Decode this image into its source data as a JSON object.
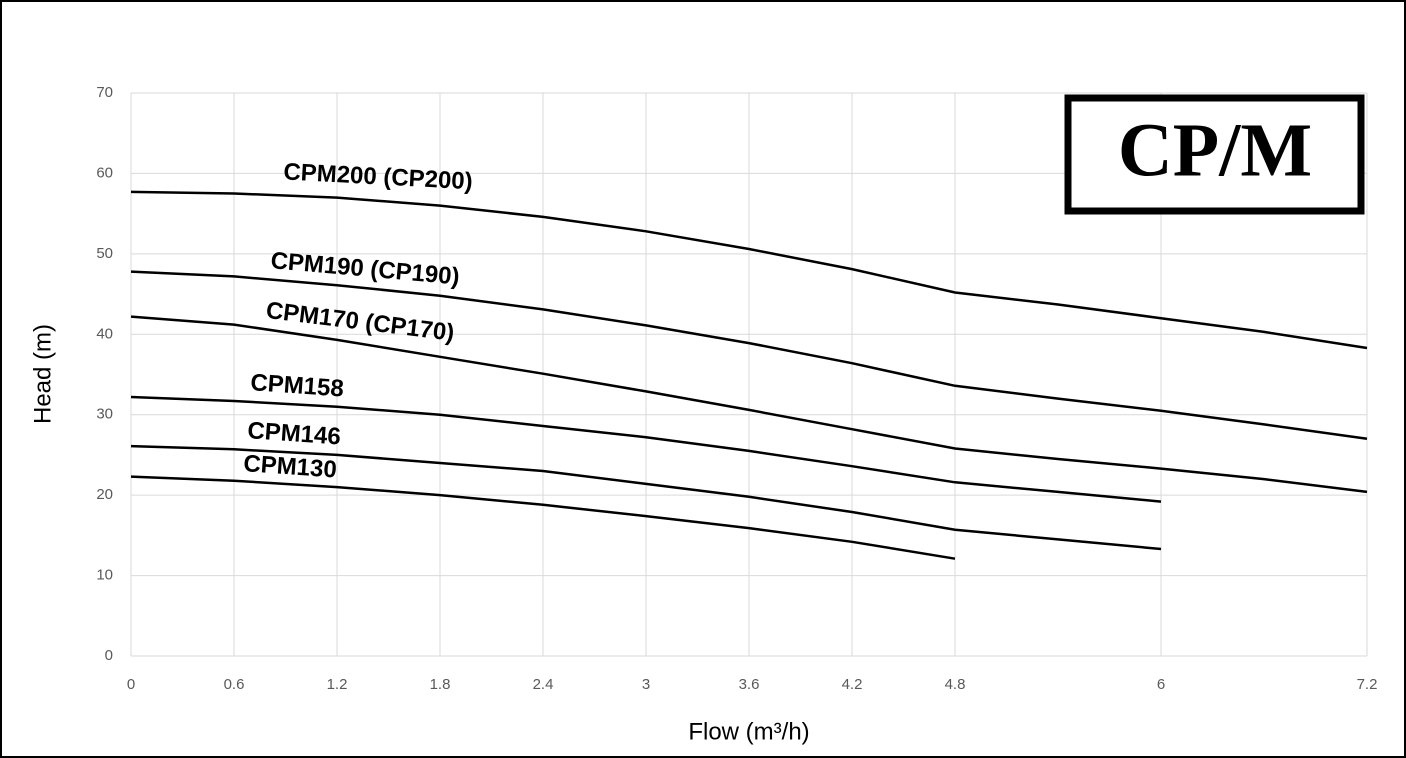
{
  "chart_data": {
    "type": "line",
    "xlabel": "Flow (m³/h)",
    "ylabel": "Head (m)",
    "badge": "CP/M",
    "x": [
      0,
      0.6,
      1.2,
      1.8,
      2.4,
      3,
      3.6,
      4.2,
      4.8,
      5.4,
      6,
      6.6,
      7.2
    ],
    "series": [
      {
        "name": "CPM200 (CP200)",
        "color": "#000000",
        "values": [
          57.7,
          57.5,
          57.0,
          56.0,
          54.6,
          52.8,
          50.6,
          48.1,
          45.2,
          43.7,
          42.0,
          40.3,
          38.3
        ]
      },
      {
        "name": "CPM190 (CP190)",
        "color": "#000000",
        "values": [
          47.8,
          47.2,
          46.1,
          44.8,
          43.1,
          41.1,
          38.9,
          36.4,
          33.6,
          32.0,
          30.5,
          28.8,
          27.0
        ]
      },
      {
        "name": "CPM170 (CP170)",
        "color": "#000000",
        "values": [
          42.2,
          41.2,
          39.3,
          37.2,
          35.1,
          32.9,
          30.6,
          28.2,
          25.8,
          24.5,
          23.3,
          22.0,
          20.4
        ]
      },
      {
        "name": "CPM158",
        "color": "#000000",
        "values": [
          32.2,
          31.7,
          31.0,
          30.0,
          28.6,
          27.2,
          25.5,
          23.6,
          21.6,
          20.4,
          19.2,
          null,
          null
        ]
      },
      {
        "name": "CPM146",
        "color": "#000000",
        "values": [
          26.1,
          25.7,
          25.0,
          24.0,
          23.0,
          21.4,
          19.8,
          17.9,
          15.7,
          14.5,
          13.3,
          null,
          null
        ]
      },
      {
        "name": "CPM130",
        "color": "#000000",
        "values": [
          22.3,
          21.8,
          21.0,
          20.0,
          18.8,
          17.4,
          15.9,
          14.2,
          12.1,
          null,
          null,
          null,
          null
        ]
      }
    ],
    "xlim": [
      0,
      7.2
    ],
    "ylim": [
      0,
      70
    ],
    "xticks": [
      0,
      0.6,
      1.2,
      1.8,
      2.4,
      3,
      3.6,
      4.2,
      4.8,
      6,
      7.2
    ],
    "yticks": [
      0,
      10,
      20,
      30,
      40,
      50,
      60,
      70
    ],
    "grid": true
  }
}
